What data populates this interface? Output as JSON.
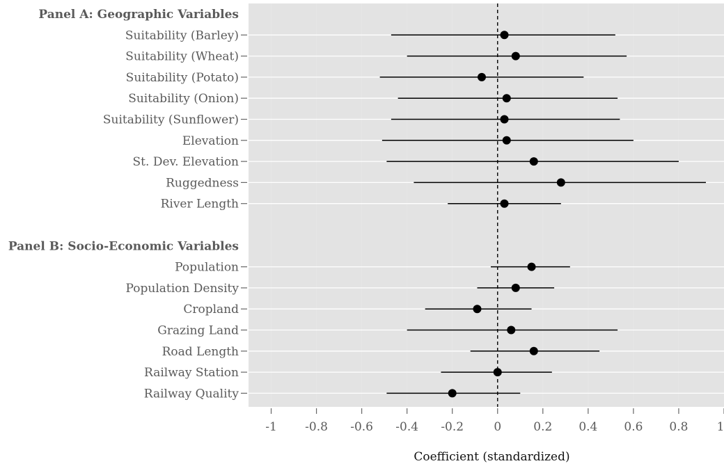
{
  "chart_data": {
    "type": "scatter",
    "subtype": "coefficient-plot-with-intervals",
    "xlabel": "Coefficient (standardized)",
    "xlim": [
      -1.1,
      1.0
    ],
    "xticks": [
      "-1",
      "-0.8",
      "-0.6",
      "-0.4",
      "-0.2",
      "0",
      "0.2",
      "0.4",
      "0.6",
      "0.8",
      "1"
    ],
    "xtick_values": [
      -1,
      -0.8,
      -0.6,
      -0.4,
      -0.2,
      0,
      0.2,
      0.4,
      0.6,
      0.8,
      1
    ],
    "reference_line": 0,
    "background": "#e3e3e3",
    "grid": true,
    "panels": [
      {
        "title": "Panel A: Geographic Variables",
        "rows": [
          {
            "label": "Suitability (Barley)",
            "estimate": 0.03,
            "low": -0.47,
            "high": 0.52
          },
          {
            "label": "Suitability (Wheat)",
            "estimate": 0.08,
            "low": -0.4,
            "high": 0.57
          },
          {
            "label": "Suitability (Potato)",
            "estimate": -0.07,
            "low": -0.52,
            "high": 0.38
          },
          {
            "label": "Suitability (Onion)",
            "estimate": 0.04,
            "low": -0.44,
            "high": 0.53
          },
          {
            "label": "Suitability (Sunflower)",
            "estimate": 0.03,
            "low": -0.47,
            "high": 0.54
          },
          {
            "label": "Elevation",
            "estimate": 0.04,
            "low": -0.51,
            "high": 0.6
          },
          {
            "label": "St. Dev. Elevation",
            "estimate": 0.16,
            "low": -0.49,
            "high": 0.8
          },
          {
            "label": "Ruggedness",
            "estimate": 0.28,
            "low": -0.37,
            "high": 0.92
          },
          {
            "label": "River Length",
            "estimate": 0.03,
            "low": -0.22,
            "high": 0.28
          }
        ]
      },
      {
        "title": "Panel B: Socio-Economic Variables",
        "rows": [
          {
            "label": "Population",
            "estimate": 0.15,
            "low": -0.03,
            "high": 0.32
          },
          {
            "label": "Population Density",
            "estimate": 0.08,
            "low": -0.09,
            "high": 0.25
          },
          {
            "label": "Cropland",
            "estimate": -0.09,
            "low": -0.32,
            "high": 0.15
          },
          {
            "label": "Grazing Land",
            "estimate": 0.06,
            "low": -0.4,
            "high": 0.53
          },
          {
            "label": "Road Length",
            "estimate": 0.16,
            "low": -0.12,
            "high": 0.45
          },
          {
            "label": "Railway Station",
            "estimate": 0.0,
            "low": -0.25,
            "high": 0.24
          },
          {
            "label": "Railway Quality",
            "estimate": -0.2,
            "low": -0.49,
            "high": 0.1
          }
        ]
      }
    ]
  }
}
